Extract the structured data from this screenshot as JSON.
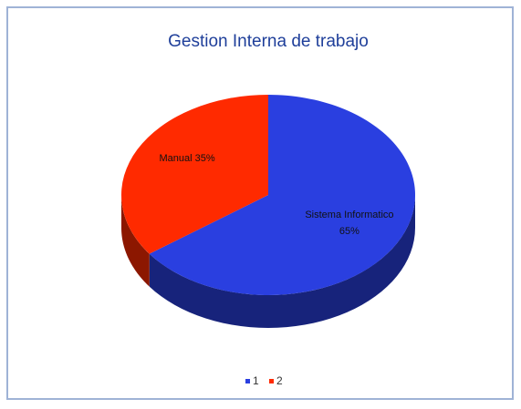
{
  "chart_data": {
    "type": "pie",
    "title": "Gestion Interna de trabajo",
    "categories": [
      "1",
      "2"
    ],
    "values": [
      65,
      35
    ],
    "value_labels": [
      "Sistema Informatico 65%",
      "Manual 35%"
    ],
    "colors": [
      "#2a3fe0",
      "#ff2a00"
    ],
    "legend": "bottom",
    "3d": true
  }
}
